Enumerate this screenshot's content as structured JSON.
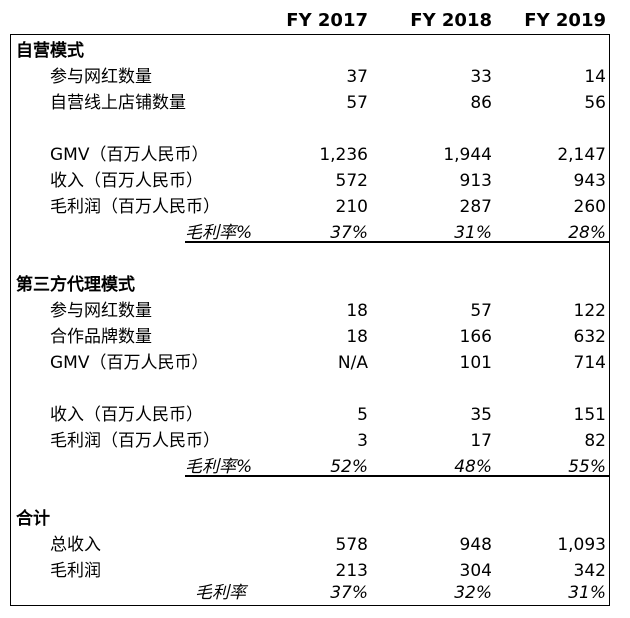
{
  "header": {
    "col1": "FY 2017",
    "col2": "FY 2018",
    "col3": "FY 2019"
  },
  "sec1": {
    "title": "自营模式",
    "r1": {
      "label": "参与网红数量",
      "v1": "37",
      "v2": "33",
      "v3": "14"
    },
    "r2": {
      "label": "自营线上店铺数量",
      "v1": "57",
      "v2": "86",
      "v3": "56"
    },
    "r3": {
      "label": "GMV（百万人民币）",
      "v1": "1,236",
      "v2": "1,944",
      "v3": "2,147"
    },
    "r4": {
      "label": "收入（百万人民币）",
      "v1": "572",
      "v2": "913",
      "v3": "943"
    },
    "r5": {
      "label": "毛利润（百万人民币）",
      "v1": "210",
      "v2": "287",
      "v3": "260"
    },
    "r6": {
      "label": "毛利率%",
      "v1": "37%",
      "v2": "31%",
      "v3": "28%"
    }
  },
  "sec2": {
    "title": "第三方代理模式",
    "r1": {
      "label": "参与网红数量",
      "v1": "18",
      "v2": "57",
      "v3": "122"
    },
    "r2": {
      "label": "合作品牌数量",
      "v1": "18",
      "v2": "166",
      "v3": "632"
    },
    "r3": {
      "label": "GMV（百万人民币）",
      "v1": "N/A",
      "v2": "101",
      "v3": "714"
    },
    "r4": {
      "label": "收入（百万人民币）",
      "v1": "5",
      "v2": "35",
      "v3": "151"
    },
    "r5": {
      "label": "毛利润（百万人民币）",
      "v1": "3",
      "v2": "17",
      "v3": "82"
    },
    "r6": {
      "label": "毛利率%",
      "v1": "52%",
      "v2": "48%",
      "v3": "55%"
    }
  },
  "sec3": {
    "title": "合计",
    "r1": {
      "label": "总收入",
      "v1": "578",
      "v2": "948",
      "v3": "1,093"
    },
    "r2": {
      "label": "毛利润",
      "v1": "213",
      "v2": "304",
      "v3": "342"
    },
    "r3": {
      "label": "毛利率",
      "v1": "37%",
      "v2": "32%",
      "v3": "31%"
    }
  }
}
